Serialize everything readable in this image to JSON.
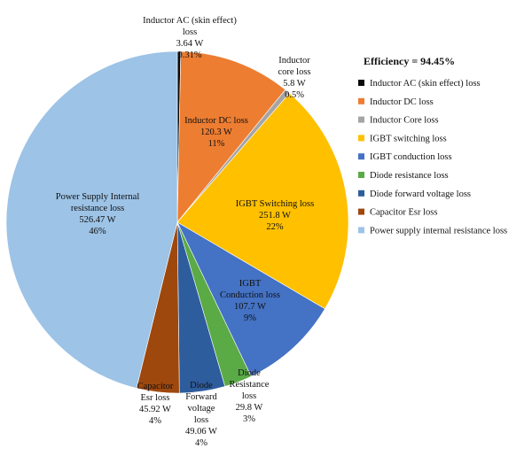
{
  "chart_data": {
    "type": "pie",
    "title": "Efficiency = 94.45%",
    "legend_position": "right",
    "slices": [
      {
        "legend": "Inductor AC (skin effect) loss",
        "label_lines": [
          "Inductor AC (skin effect)",
          "loss",
          "3.64 W",
          "0.31%"
        ],
        "value": 3.64,
        "percent": "0.31%",
        "color": "#0a0a0a"
      },
      {
        "legend": "Inductor DC loss",
        "label_lines": [
          "Inductor DC loss",
          "120.3 W",
          "11%"
        ],
        "value": 120.3,
        "percent": "11%",
        "color": "#ed7d31"
      },
      {
        "legend": "Inductor Core loss",
        "label_lines": [
          "Inductor",
          "core loss",
          "5.8 W",
          "0.5%"
        ],
        "value": 5.8,
        "percent": "0.5%",
        "color": "#a5a5a5"
      },
      {
        "legend": "IGBT switching loss",
        "label_lines": [
          "IGBT Switching loss",
          "251.8 W",
          "22%"
        ],
        "value": 251.8,
        "percent": "22%",
        "color": "#ffc000"
      },
      {
        "legend": "IGBT conduction loss",
        "label_lines": [
          "IGBT",
          "Conduction loss",
          "107.7 W",
          "9%"
        ],
        "value": 107.7,
        "percent": "9%",
        "color": "#4472c4"
      },
      {
        "legend": "Diode resistance loss",
        "label_lines": [
          "Diode",
          "Resistance",
          "loss",
          "29.8 W",
          "3%"
        ],
        "value": 29.8,
        "percent": "3%",
        "color": "#5aaa46"
      },
      {
        "legend": "Diode forward voltage loss",
        "label_lines": [
          "Diode",
          "Forward",
          "voltage",
          "loss",
          "49.06 W",
          "4%"
        ],
        "value": 49.06,
        "percent": "4%",
        "color": "#2e5d9e"
      },
      {
        "legend": "Capacitor Esr loss",
        "label_lines": [
          "Capacitor",
          "Esr loss",
          "45.92 W",
          "4%"
        ],
        "value": 45.92,
        "percent": "4%",
        "color": "#9e480e"
      },
      {
        "legend": "Power supply internal resistance loss",
        "label_lines": [
          "Power Supply Internal",
          "resistance loss",
          "526.47 W",
          "46%"
        ],
        "value": 526.47,
        "percent": "46%",
        "color": "#9dc3e6"
      }
    ]
  }
}
